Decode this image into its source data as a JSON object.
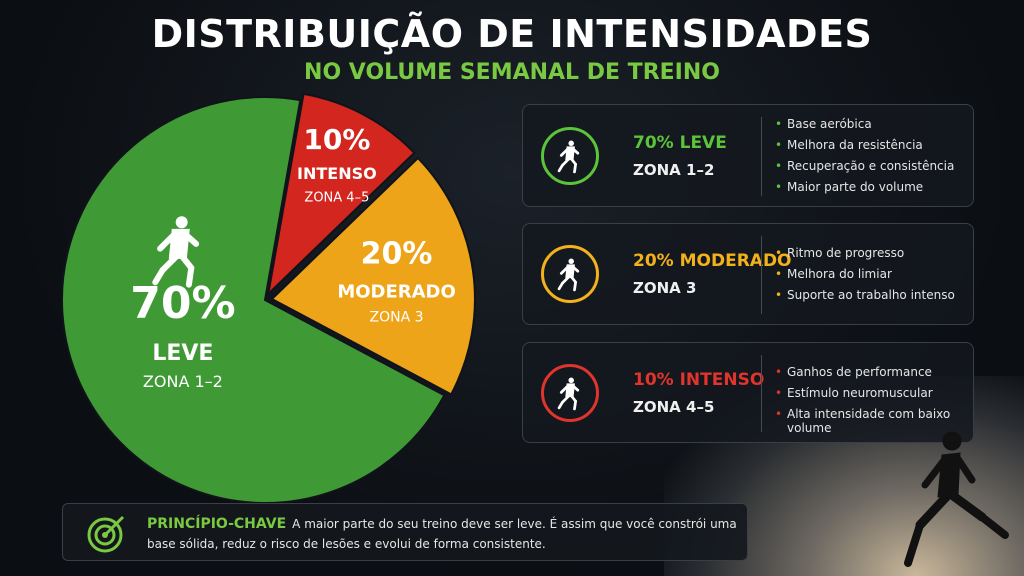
{
  "chart_data": {
    "type": "pie",
    "title": "DISTRIBUIÇÃO DE INTENSIDADES",
    "subtitle": "NO VOLUME SEMANAL DE TREINO",
    "categories": [
      "LEVE",
      "MODERADO",
      "INTENSO"
    ],
    "values": [
      70,
      20,
      10
    ],
    "value_labels": [
      "70%",
      "20%",
      "10%"
    ],
    "zones": [
      "ZONA 1–2",
      "ZONA 3",
      "ZONA 4–5"
    ],
    "colors": [
      "#3f9a35",
      "#eea419",
      "#d3261f"
    ]
  },
  "cards": [
    {
      "title": "70% LEVE",
      "zone": "ZONA 1–2",
      "color": "#5cc43a",
      "bullets": [
        "Base aeróbica",
        "Melhora da resistência",
        "Recuperação e consistência",
        "Maior parte do volume"
      ]
    },
    {
      "title": "20% MODERADO",
      "zone": "ZONA 3",
      "color": "#f3b21b",
      "bullets": [
        "Ritmo de progresso",
        "Melhora do limiar",
        "Suporte ao trabalho intenso"
      ]
    },
    {
      "title": "10% INTENSO",
      "zone": "ZONA 4–5",
      "color": "#e0342c",
      "bullets": [
        "Ganhos de performance",
        "Estímulo neuromuscular",
        "Alta intensidade com baixo volume"
      ]
    }
  ],
  "principle": {
    "title": "PRINCÍPIO-CHAVE",
    "text": "A maior parte do seu treino deve ser leve. É assim que você constrói uma base sólida, reduz o risco de lesões e evolui de forma consistente."
  }
}
